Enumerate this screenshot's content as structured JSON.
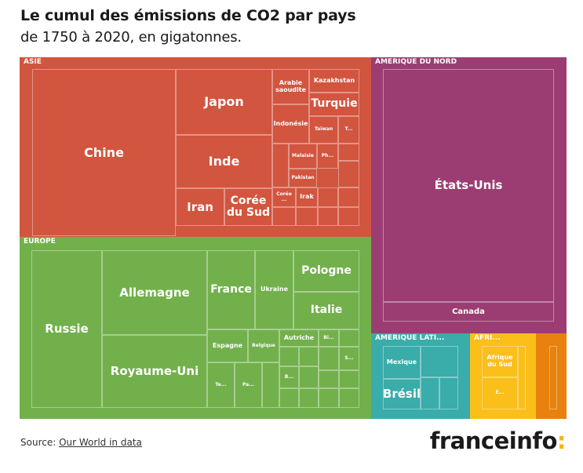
{
  "header": {
    "title": "Le cumul des émissions de CO2 par pays",
    "subtitle": "de 1750 à 2020, en gigatonnes."
  },
  "footer": {
    "source_prefix": "Source:",
    "source_link": "Our World in data",
    "logo_text": "franceinfo",
    "logo_colon": ":"
  },
  "colors": {
    "asie": "#d2553f",
    "europe": "#72b04c",
    "amerique_du_nord": "#9b3d73",
    "amerique_latine": "#3aacaa",
    "afrique": "#fbbf1a",
    "oceanie": "#e8810d",
    "logo_accent": "#f7b500"
  },
  "chart_data": {
    "type": "treemap",
    "title": "Le cumul des émissions de CO2 par pays",
    "subtitle": "de 1750 à 2020, en gigatonnes.",
    "regions": [
      {
        "name": "ASIE",
        "countries": [
          "Chine",
          "Japon",
          "Inde",
          "Iran",
          "Corée du Sud",
          "Arabie saoudite",
          "Kazakhstan",
          "Turquie",
          "Indonésie",
          "Taïwan",
          "T...",
          "Malaisie",
          "Ph...",
          "Pakistan",
          "Irak",
          "Corée ..."
        ]
      },
      {
        "name": "AMÉRIQUE DU NORD",
        "countries": [
          "États-Unis",
          "Canada"
        ]
      },
      {
        "name": "EUROPE",
        "countries": [
          "Russie",
          "Allemagne",
          "Royaume-Uni",
          "France",
          "Ukraine",
          "Pologne",
          "Italie",
          "Espagne",
          "Belgique",
          "Autriche",
          "Bi...",
          "S...",
          "Te...",
          "Pa...",
          "B..."
        ]
      },
      {
        "name": "AMÉRIQUE LATI...",
        "countries": [
          "Mexique",
          "Brésil"
        ]
      },
      {
        "name": "AFRI...",
        "countries": [
          "Afrique du Sud",
          "É..."
        ]
      },
      {
        "name": "",
        "countries": []
      }
    ]
  }
}
